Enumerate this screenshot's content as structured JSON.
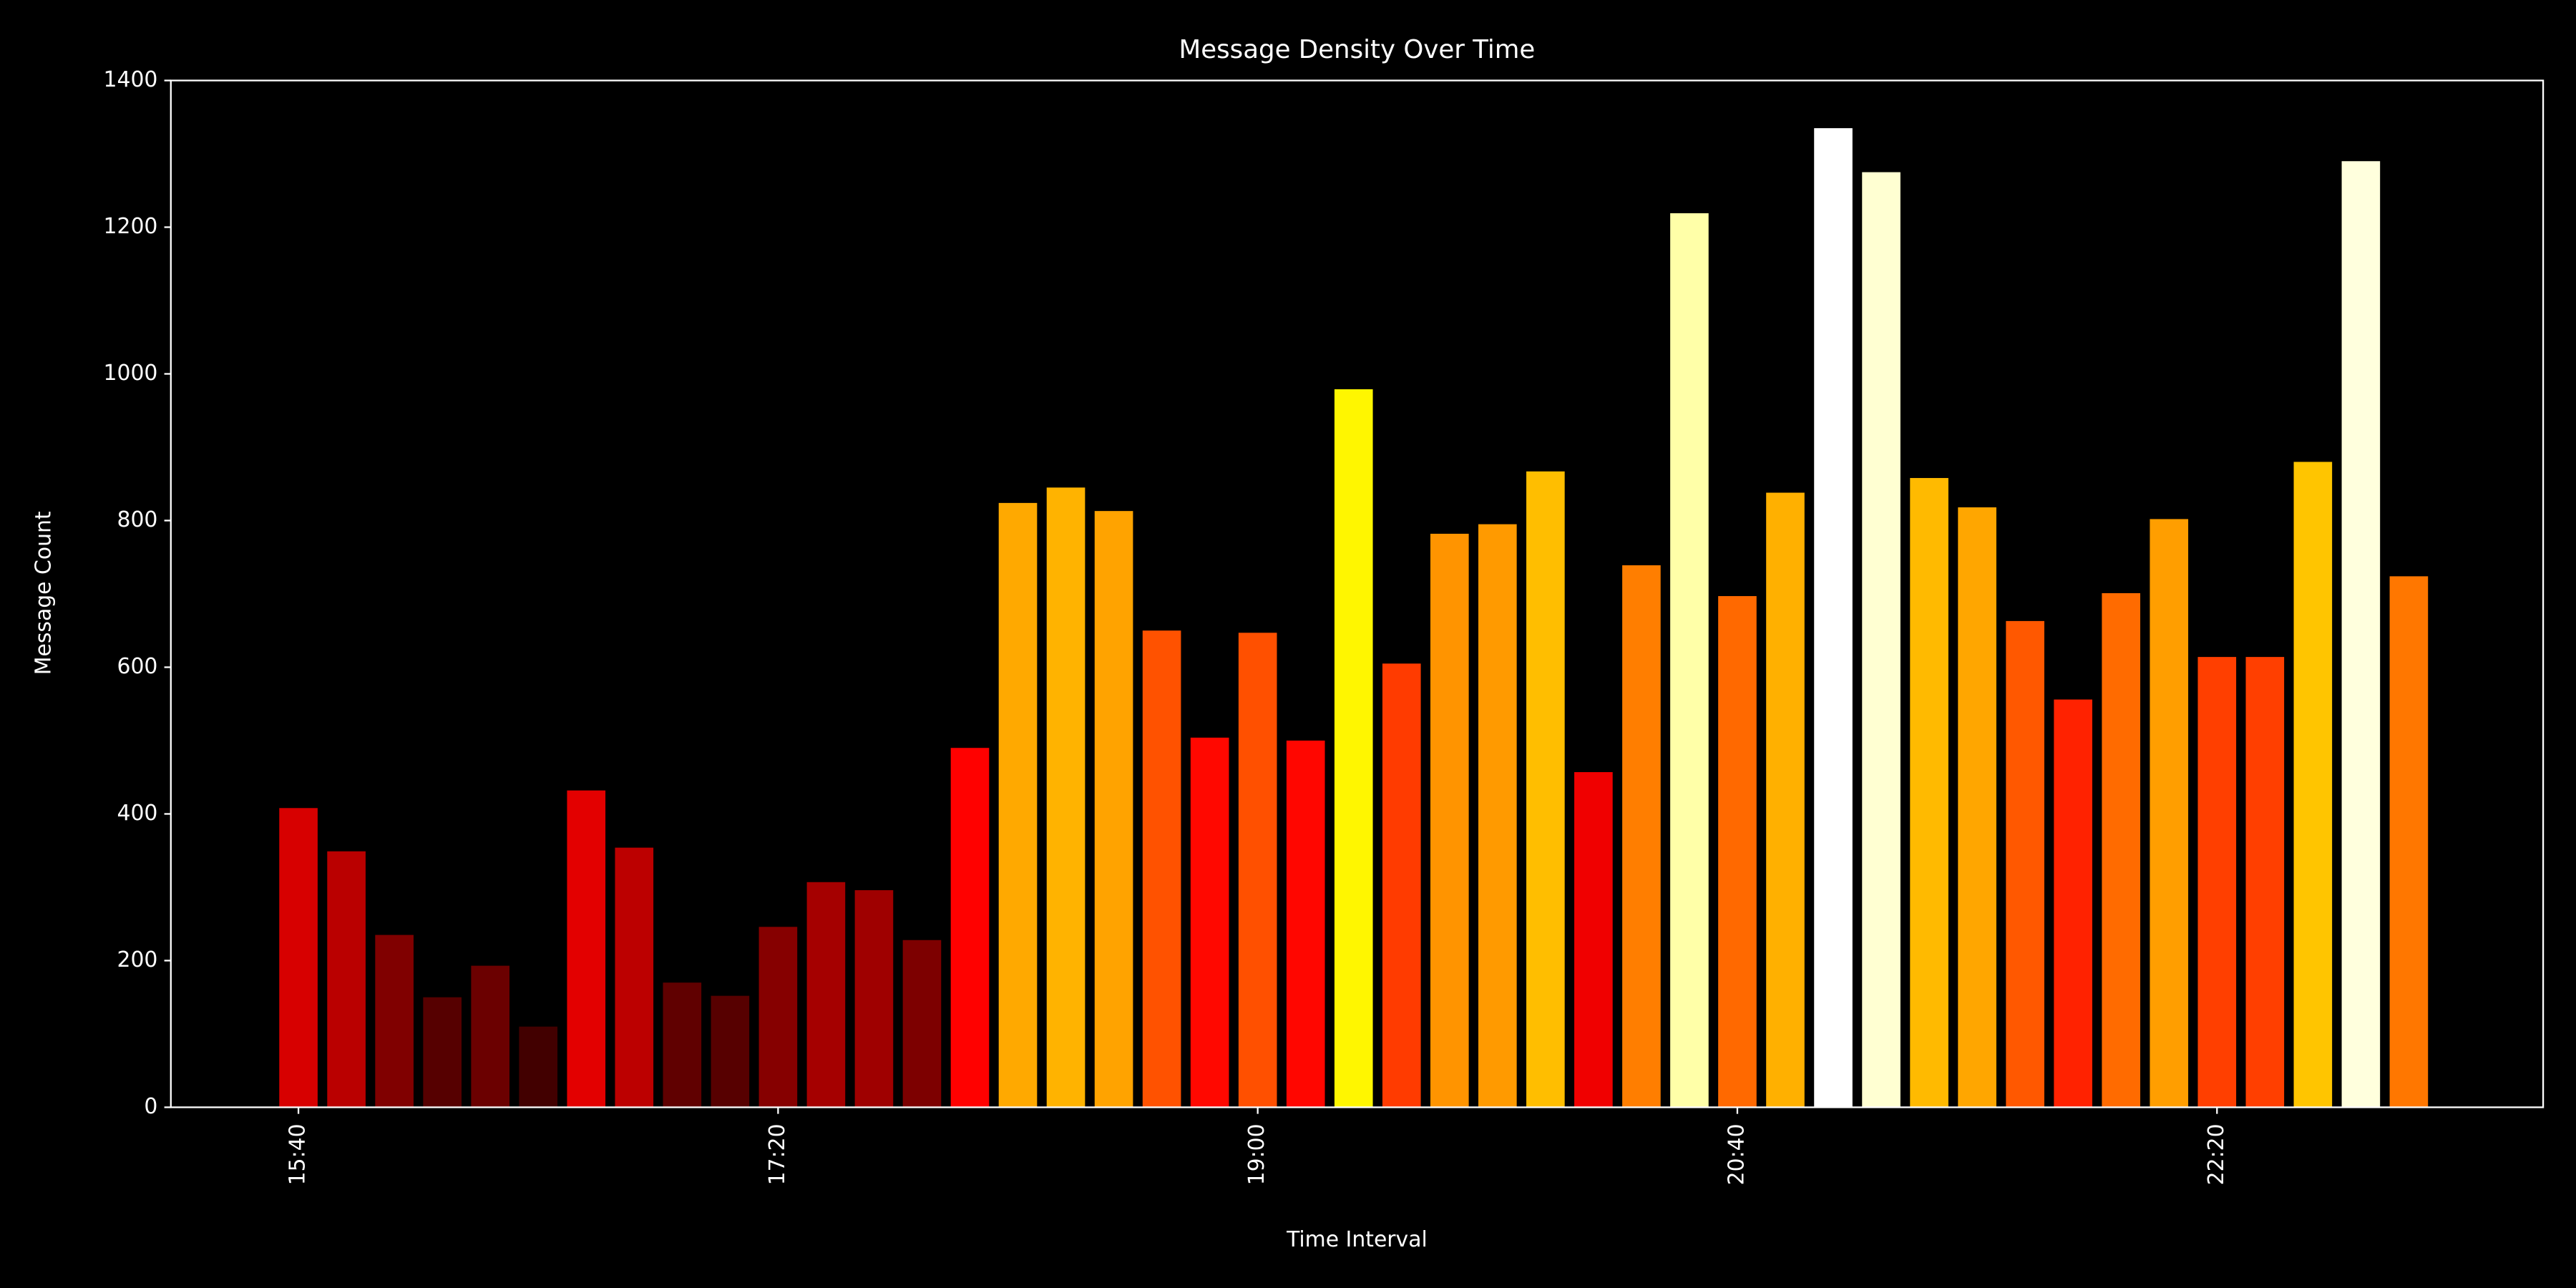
{
  "chart_data": {
    "type": "bar",
    "title": "Message Density Over Time",
    "x_label": "Time Interval",
    "y_label": "Message Count",
    "categories": [
      "15:40",
      null,
      null,
      null,
      null,
      null,
      null,
      null,
      null,
      null,
      "17:20",
      null,
      null,
      null,
      null,
      null,
      null,
      null,
      null,
      null,
      "19:00",
      null,
      null,
      null,
      null,
      null,
      null,
      null,
      null,
      null,
      "20:40",
      null,
      null,
      null,
      null,
      null,
      null,
      null,
      null,
      null,
      "22:20",
      null,
      null,
      null,
      null
    ],
    "values": [
      408,
      349,
      235,
      150,
      193,
      110,
      432,
      354,
      170,
      152,
      246,
      307,
      296,
      228,
      490,
      824,
      845,
      813,
      650,
      504,
      647,
      500,
      979,
      605,
      782,
      795,
      867,
      457,
      739,
      1219,
      697,
      838,
      1335,
      1275,
      858,
      818,
      663,
      556,
      701,
      802,
      614,
      614,
      880,
      1290,
      724
    ],
    "colormap": "hot",
    "ylim": [
      0,
      1400
    ],
    "yticks": [
      0,
      200,
      400,
      600,
      800,
      1000,
      1200,
      1400
    ],
    "grid": false
  }
}
